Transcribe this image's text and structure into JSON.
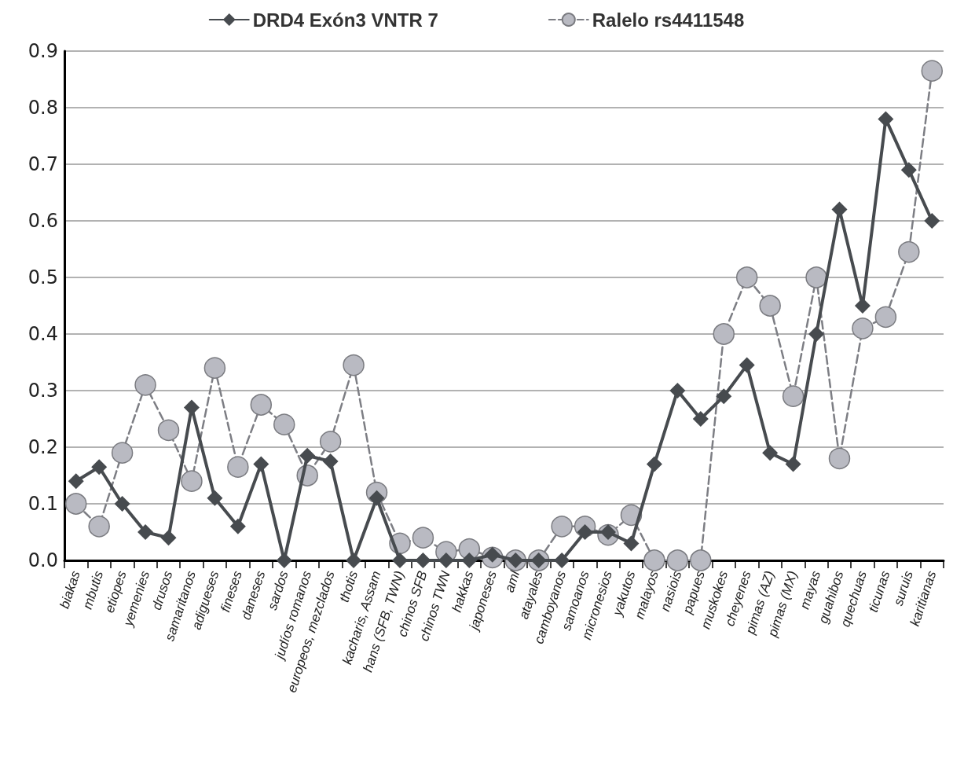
{
  "chart_data": {
    "type": "line",
    "categories": [
      "biakas",
      "mbutis",
      "etiopes",
      "yemenies",
      "drusos",
      "samaritanos",
      "adigueses",
      "fineses",
      "daneses",
      "sardos",
      "judíos romanos",
      "europeos, mezclados",
      "thotis",
      "kacharis, Assam",
      "hans (SFB, TWN)",
      "chinos SFB",
      "chinos TWN",
      "hakkas",
      "japoneses",
      "aml",
      "atayales",
      "camboyanos",
      "samoanos",
      "micronesios",
      "yakutos",
      "malayos",
      "nasiois",
      "papues",
      "muskokes",
      "cheyenes",
      "pimas (AZ)",
      "pimas (MX)",
      "mayas",
      "guahibos",
      "quechuas",
      "ticunas",
      "suruis",
      "karitianas"
    ],
    "series": [
      {
        "name": "DRD4 Exón3 VNTR 7",
        "color": "#474b4f",
        "marker": "diamond",
        "line_style": "solid",
        "values": [
          0.14,
          0.165,
          0.1,
          0.05,
          0.04,
          0.27,
          0.11,
          0.06,
          0.17,
          0,
          0.185,
          0.175,
          0,
          0.11,
          0,
          0,
          0,
          0,
          0.01,
          0,
          0,
          0,
          0.05,
          0.05,
          0.03,
          0.17,
          0.3,
          0.25,
          0.29,
          0.345,
          0.19,
          0.17,
          0.4,
          0.62,
          0.45,
          0.78,
          0.69,
          0.6
        ]
      },
      {
        "name": "Ralelo rs4411548",
        "color": "#b9bac2",
        "marker": "circle",
        "line_style": "dashed",
        "values": [
          0.1,
          0.06,
          0.19,
          0.31,
          0.23,
          0.14,
          0.34,
          0.165,
          0.275,
          0.24,
          0.15,
          0.21,
          0.345,
          0.12,
          0.03,
          0.04,
          0.015,
          0.02,
          0.005,
          0,
          0,
          0.06,
          0.06,
          0.045,
          0.08,
          0,
          0,
          0,
          0.4,
          0.5,
          0.45,
          0.29,
          0.5,
          0.18,
          0.41,
          0.43,
          0.545,
          0.865
        ]
      }
    ],
    "ylim": [
      0,
      0.9
    ],
    "yticks": [
      {
        "value": 0,
        "label": "0.0"
      },
      0.1,
      0.2,
      0.3,
      0.4,
      0.5,
      0.6,
      0.7,
      0.8,
      0.9
    ],
    "grid": "y",
    "legend": "top"
  }
}
